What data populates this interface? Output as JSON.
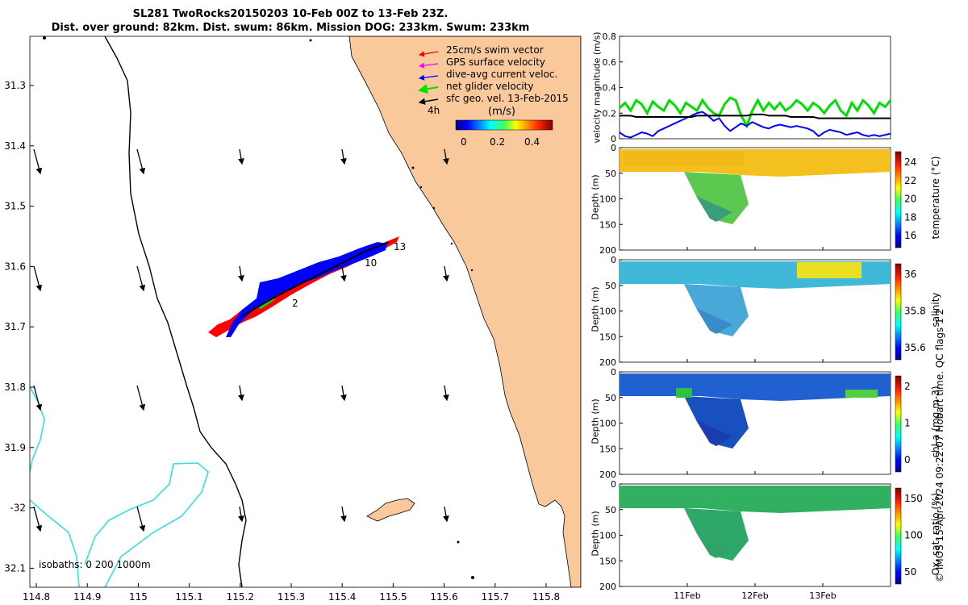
{
  "header": {
    "title_line1": "SL281 TwoRocks20150203 10-Feb 00Z to 13-Feb 23Z.",
    "title_line2": "Dist. over ground: 82km. Dist. swum: 86km. Mission DOG: 233km. Swum: 233km"
  },
  "map": {
    "legend": [
      {
        "label": "25cm/s swim vector",
        "color": "#ff0000"
      },
      {
        "label": "GPS surface velocity",
        "color": "#ff00ff"
      },
      {
        "label": "dive-avg current veloc.",
        "color": "#0000ff"
      },
      {
        "label": "net glider velocity",
        "color": "#00e000"
      },
      {
        "label": "sfc geo. vel. 13-Feb-2015",
        "color": "#000000"
      }
    ],
    "time_label": "4h",
    "colorbar_unit": "(m/s)",
    "colorbar_ticks": [
      "0",
      "0.2",
      "0.4"
    ],
    "isobath_label": "isobaths: 0   200  1000m",
    "lon_ticks": [
      "114.8",
      "114.9",
      "115",
      "115.1",
      "115.2",
      "115.3",
      "115.4",
      "115.5",
      "115.6",
      "115.7",
      "115.8"
    ],
    "lat_ticks": [
      "31.3",
      "31.4",
      "31.5",
      "31.6",
      "31.7",
      "31.8",
      "31.9",
      "-32",
      "32.1"
    ],
    "track_labels": [
      "13",
      "10",
      "2"
    ],
    "colors": {
      "land": "#f9c99b",
      "isobath_200": "#000000",
      "isobath_1000": "#33e0e0"
    }
  },
  "chart_data": [
    {
      "type": "line",
      "ylabel": "velocity magnitude (m/s)",
      "ylim": [
        0,
        0.8
      ],
      "yticks": [
        "0",
        "0.2",
        "0.4",
        "0.6",
        "0.8"
      ],
      "series": [
        {
          "color": "#00e000",
          "values": [
            0.24,
            0.28,
            0.22,
            0.3,
            0.27,
            0.2,
            0.29,
            0.25,
            0.22,
            0.3,
            0.26,
            0.2,
            0.28,
            0.25,
            0.22,
            0.3,
            0.24,
            0.2,
            0.18,
            0.27,
            0.32,
            0.3,
            0.18,
            0.1,
            0.22,
            0.3,
            0.22,
            0.28,
            0.23,
            0.28,
            0.22,
            0.25,
            0.3,
            0.27,
            0.22,
            0.28,
            0.25,
            0.2,
            0.26,
            0.3,
            0.22,
            0.18,
            0.28,
            0.22,
            0.3,
            0.26,
            0.2,
            0.28,
            0.25,
            0.3
          ]
        },
        {
          "color": "#0000ff",
          "values": [
            0.05,
            0.02,
            0.01,
            0.03,
            0.05,
            0.04,
            0.02,
            0.06,
            0.08,
            0.1,
            0.12,
            0.14,
            0.16,
            0.18,
            0.2,
            0.21,
            0.18,
            0.14,
            0.16,
            0.1,
            0.06,
            0.09,
            0.12,
            0.1,
            0.13,
            0.11,
            0.09,
            0.08,
            0.1,
            0.11,
            0.1,
            0.09,
            0.1,
            0.09,
            0.08,
            0.06,
            0.02,
            0.05,
            0.07,
            0.06,
            0.05,
            0.03,
            0.04,
            0.05,
            0.03,
            0.02,
            0.03,
            0.02,
            0.03,
            0.04
          ]
        },
        {
          "color": "#000000",
          "values": [
            0.18,
            0.18,
            0.18,
            0.17,
            0.17,
            0.17,
            0.17,
            0.17,
            0.17,
            0.17,
            0.17,
            0.17,
            0.17,
            0.17,
            0.18,
            0.18,
            0.18,
            0.18,
            0.18,
            0.18,
            0.18,
            0.18,
            0.18,
            0.18,
            0.19,
            0.19,
            0.19,
            0.18,
            0.18,
            0.18,
            0.18,
            0.17,
            0.17,
            0.17,
            0.17,
            0.17,
            0.16,
            0.16,
            0.16,
            0.16,
            0.16,
            0.16,
            0.16,
            0.16,
            0.16,
            0.16,
            0.16,
            0.16,
            0.16,
            0.16
          ]
        }
      ]
    },
    {
      "type": "heatmap",
      "ylabel": "Depth (m)",
      "yticks": [
        "0",
        "50",
        "100",
        "150",
        "200"
      ],
      "colorbar_label": "temperature (°C)",
      "colorbar_ticks": [
        "24",
        "22",
        "20",
        "18",
        "16"
      ],
      "range": [
        15.5,
        25
      ]
    },
    {
      "type": "heatmap",
      "ylabel": "Depth (m)",
      "yticks": [
        "0",
        "50",
        "100",
        "150",
        "200"
      ],
      "colorbar_label": "salinity",
      "colorbar_ticks": [
        "36",
        "35.8",
        "35.6"
      ],
      "range": [
        35.5,
        36.1
      ]
    },
    {
      "type": "heatmap",
      "ylabel": "Depth (m)",
      "yticks": [
        "0",
        "50",
        "100",
        "150",
        "200"
      ],
      "colorbar_label": "chl-a (mg m-3)",
      "colorbar_ticks": [
        "2",
        "1",
        "0"
      ],
      "range": [
        0,
        2
      ]
    },
    {
      "type": "heatmap",
      "ylabel": "Depth (m)",
      "yticks": [
        "0",
        "50",
        "100",
        "150",
        "200"
      ],
      "colorbar_label": "Ox. sat. ratio (%)",
      "colorbar_ticks": [
        "150",
        "100",
        "50"
      ],
      "range": [
        30,
        170
      ],
      "xticks": [
        "11Feb",
        "12Feb",
        "13Feb"
      ]
    }
  ],
  "side_caption": "© IMOS 15-Apr-2024 09:22:07 Hobart time. QC flags 1  2"
}
